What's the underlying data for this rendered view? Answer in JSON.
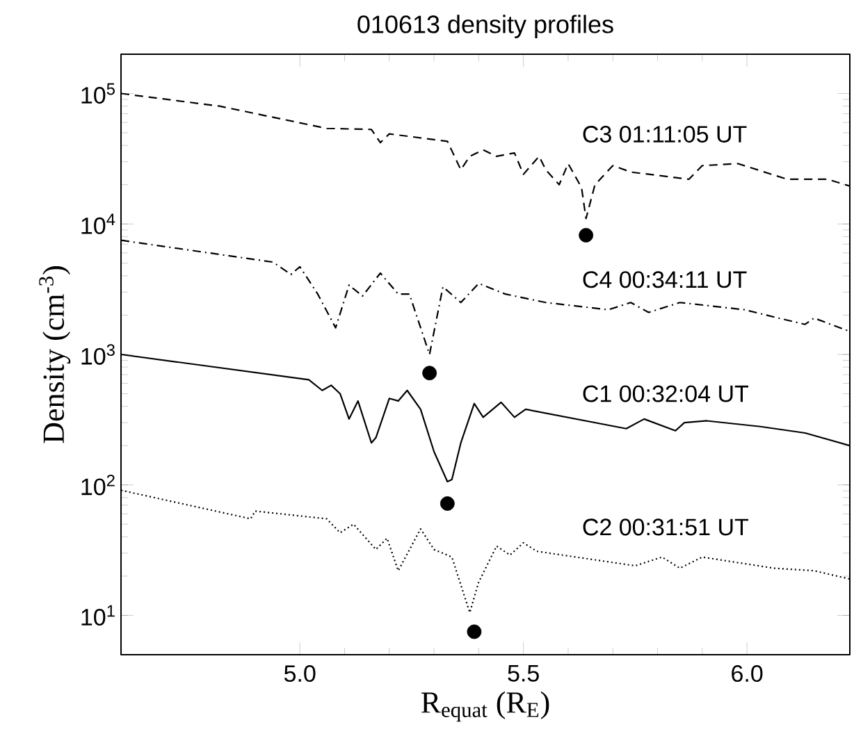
{
  "chart_data": {
    "type": "line",
    "title": "010613  density profiles",
    "xlabel": "R$_{equat}$ (R$_{E}$)",
    "ylabel": "Density (cm$^{-3}$)",
    "log": "y",
    "legend": false,
    "marker": "none",
    "grid": false,
    "xlim": [
      4.6,
      6.23
    ],
    "xticks": [
      {
        "value": 5.0,
        "label": "5.0"
      },
      {
        "value": 5.5,
        "label": "5.5"
      },
      {
        "value": 6.0,
        "label": "6.0"
      }
    ],
    "ylim": [
      5,
      200000
    ],
    "yticks": [
      {
        "value": 10,
        "label": "10$^{1}$"
      },
      {
        "value": 100,
        "label": "10$^{2}$"
      },
      {
        "value": 1000,
        "label": "10$^{3}$"
      },
      {
        "value": 10000,
        "label": "10$^{4}$"
      },
      {
        "value": 100000,
        "label": "10$^{5}$"
      }
    ],
    "series": [
      {
        "name": "C3 01:11:05 UT",
        "color": "#000000",
        "line_style": "dashed",
        "x": [
          4.6,
          4.82,
          5.06,
          5.16,
          5.18,
          5.2,
          5.33,
          5.36,
          5.38,
          5.41,
          5.44,
          5.48,
          5.5,
          5.535,
          5.55,
          5.58,
          5.6,
          5.63,
          5.64,
          5.66,
          5.7,
          5.74,
          5.87,
          5.9,
          5.98,
          6.09,
          6.18,
          6.23
        ],
        "values": [
          100000,
          80000,
          54000,
          53000,
          42000,
          49000,
          43000,
          26000,
          33000,
          37000,
          33000,
          35000,
          24000,
          33000,
          26000,
          20000,
          29000,
          19000,
          11000,
          20000,
          28000,
          25000,
          22000,
          28000,
          29000,
          22000,
          22000,
          19500
        ]
      },
      {
        "name": "C4 00:34:11 UT",
        "color": "#000000",
        "line_style": "dashdot",
        "x": [
          4.6,
          4.94,
          4.98,
          5.0,
          5.04,
          5.08,
          5.11,
          5.14,
          5.18,
          5.22,
          5.245,
          5.29,
          5.32,
          5.36,
          5.4,
          5.46,
          5.55,
          5.69,
          5.74,
          5.78,
          5.85,
          5.995,
          6.07,
          6.13,
          6.15,
          6.23
        ],
        "values": [
          7500,
          5100,
          4100,
          4700,
          2900,
          1600,
          3400,
          2800,
          4200,
          2900,
          2900,
          1000,
          3300,
          2500,
          3500,
          2900,
          2500,
          2200,
          2500,
          2100,
          2500,
          2200,
          1900,
          1700,
          1900,
          1500
        ]
      },
      {
        "name": "C1 00:32:04 UT",
        "color": "#000000",
        "line_style": "solid",
        "x": [
          4.6,
          5.02,
          5.05,
          5.07,
          5.09,
          5.11,
          5.13,
          5.16,
          5.17,
          5.2,
          5.22,
          5.24,
          5.27,
          5.3,
          5.33,
          5.34,
          5.36,
          5.39,
          5.41,
          5.45,
          5.48,
          5.505,
          5.73,
          5.77,
          5.84,
          5.86,
          5.91,
          6.03,
          6.13,
          6.23
        ],
        "values": [
          1000,
          640,
          530,
          580,
          500,
          320,
          440,
          210,
          230,
          460,
          440,
          530,
          380,
          180,
          106,
          110,
          210,
          420,
          330,
          430,
          330,
          380,
          270,
          320,
          260,
          300,
          310,
          280,
          250,
          200
        ]
      },
      {
        "name": "C2 00:31:51 UT",
        "color": "#000000",
        "line_style": "dotted",
        "x": [
          4.6,
          4.89,
          4.9,
          5.06,
          5.09,
          5.12,
          5.17,
          5.195,
          5.22,
          5.27,
          5.3,
          5.34,
          5.38,
          5.4,
          5.44,
          5.47,
          5.5,
          5.53,
          5.75,
          5.81,
          5.85,
          5.9,
          6.06,
          6.15,
          6.23
        ],
        "values": [
          91,
          55,
          63,
          55,
          43,
          50,
          32,
          39,
          22,
          46,
          32,
          28,
          10.5,
          18,
          34,
          29,
          36,
          31,
          24,
          28,
          23,
          28,
          23,
          22,
          19
        ]
      },
      {
        "type": "scatter",
        "color": "#000000",
        "marker": "circle",
        "x": [
          5.64,
          5.29,
          5.33,
          5.39
        ],
        "values": [
          8200,
          720,
          72,
          7.5
        ]
      }
    ]
  }
}
